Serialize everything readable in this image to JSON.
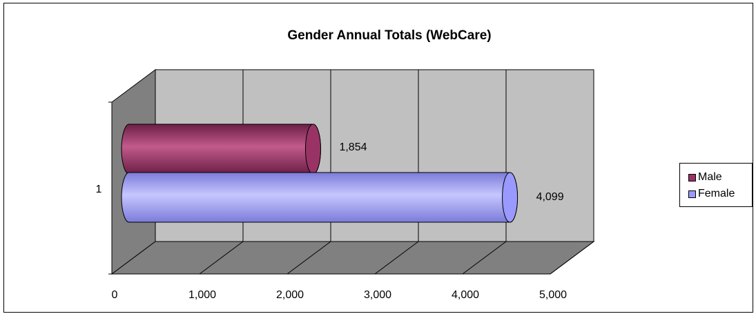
{
  "chart_data": {
    "type": "bar",
    "orientation": "horizontal",
    "style": "3d-cylinder",
    "title": "Gender Annual Totals (WebCare)",
    "categories": [
      "1"
    ],
    "series": [
      {
        "name": "Male",
        "values": [
          1854
        ],
        "color": "#993366",
        "value_label": "1,854"
      },
      {
        "name": "Female",
        "values": [
          4099
        ],
        "color": "#9999ff",
        "value_label": "4,099"
      }
    ],
    "xlim": [
      0,
      5000
    ],
    "x_ticks": [
      {
        "value": 0,
        "label": "0"
      },
      {
        "value": 1000,
        "label": "1,000"
      },
      {
        "value": 2000,
        "label": "2,000"
      },
      {
        "value": 3000,
        "label": "3,000"
      },
      {
        "value": 4000,
        "label": "4,000"
      },
      {
        "value": 5000,
        "label": "5,000"
      }
    ],
    "grid": true,
    "legend_position": "right",
    "wall_color": "#c0c0c0",
    "floor_color": "#808080"
  }
}
